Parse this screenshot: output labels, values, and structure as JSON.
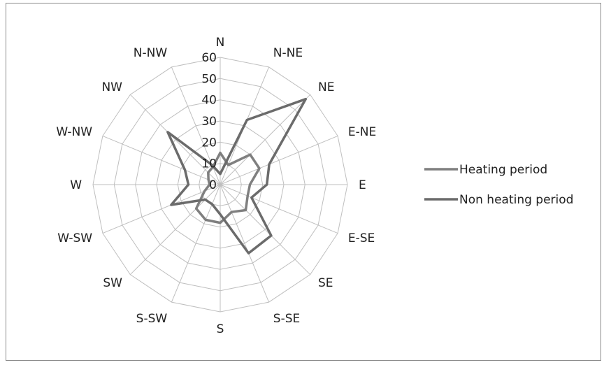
{
  "chart_data": {
    "type": "radar",
    "title": "",
    "directions": [
      "N",
      "N-NE",
      "NE",
      "E-NE",
      "E",
      "E-SE",
      "SE",
      "S-SE",
      "S",
      "S-SW",
      "SW",
      "W-SW",
      "W",
      "W-NW",
      "NW",
      "N-NW"
    ],
    "rlim": [
      0,
      60
    ],
    "ticks": [
      0,
      10,
      20,
      30,
      40,
      50,
      60
    ],
    "grid": true,
    "legend_position": "right",
    "series": [
      {
        "name": "Heating period",
        "color": "#7f7f7f",
        "values": [
          15,
          10,
          20,
          20,
          14,
          14,
          17,
          14,
          18,
          18,
          16,
          8,
          5,
          6,
          8,
          9
        ]
      },
      {
        "name": "Non heating period",
        "color": "#6b6b6b",
        "values": [
          5,
          33,
          57,
          25,
          22,
          16,
          34,
          35,
          14,
          10,
          10,
          25,
          15,
          18,
          35,
          10
        ]
      }
    ]
  }
}
